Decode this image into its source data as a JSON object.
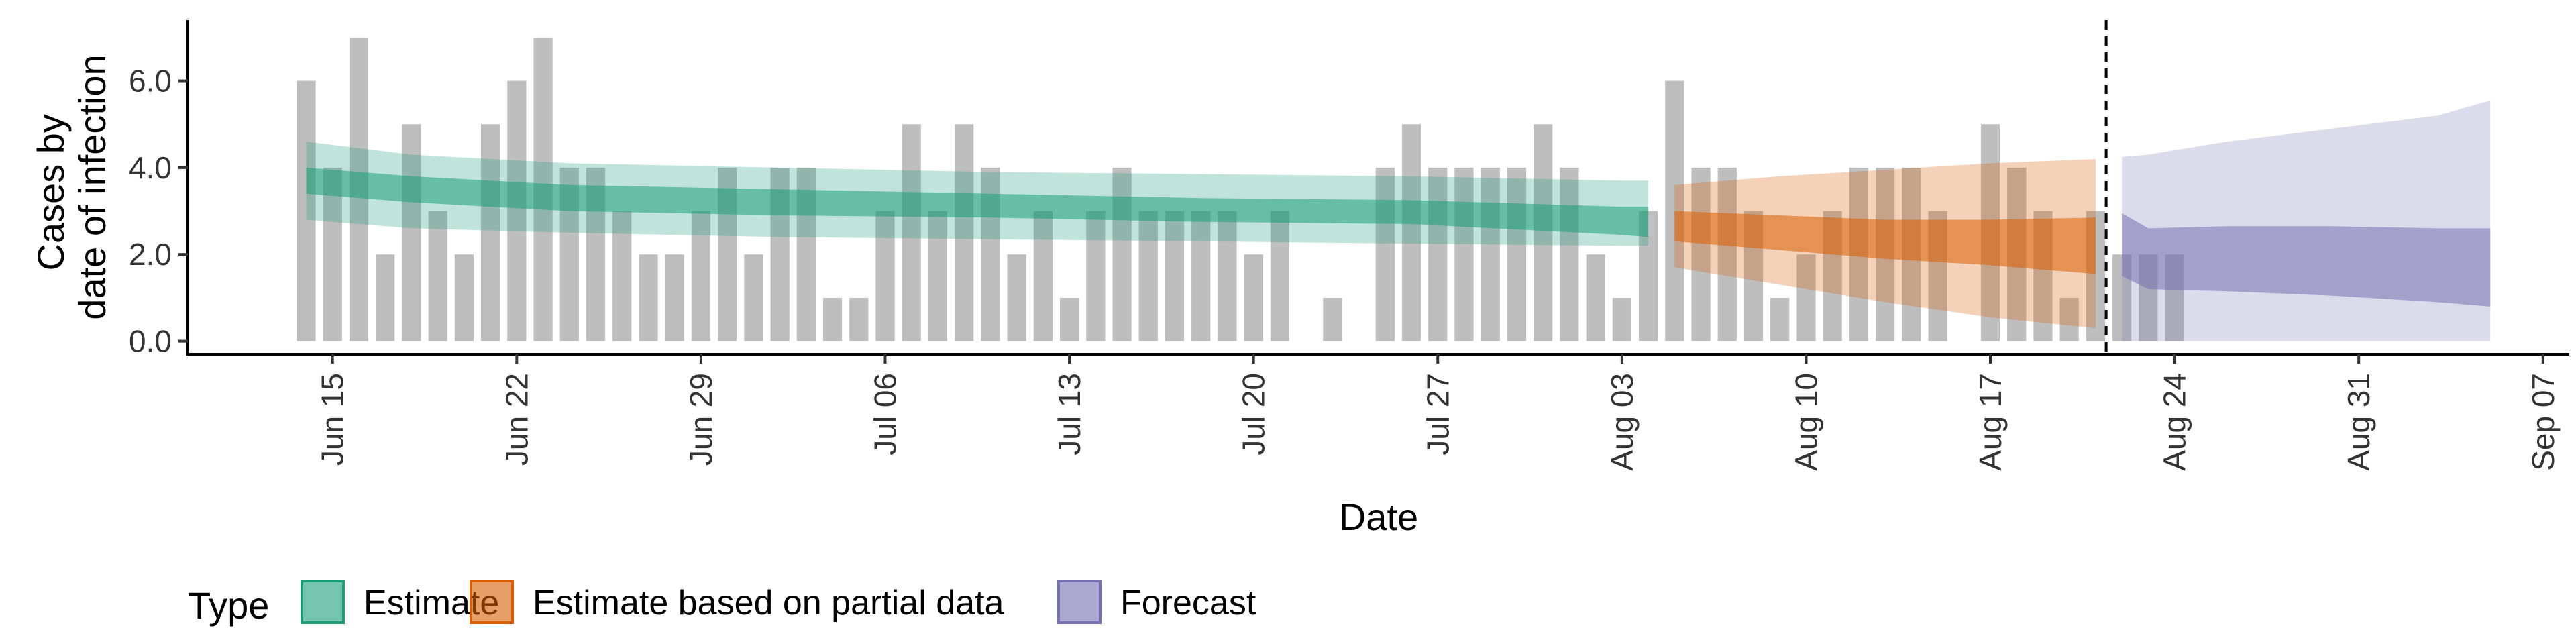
{
  "chart_data": {
    "type": "bar",
    "xlabel": "Date",
    "ylabel_lines": [
      "Cases by",
      "date of infection"
    ],
    "ylim": [
      -0.3,
      7.4
    ],
    "y_ticks": [
      0,
      2,
      4,
      6
    ],
    "y_tick_labels": [
      "0.0",
      "2.0",
      "4.0",
      "6.0"
    ],
    "x_start_date": "2020-06-10",
    "x_range_days": [
      -0.5,
      90.0
    ],
    "x_ticks": [
      {
        "day": 5,
        "label": "Jun 15"
      },
      {
        "day": 12,
        "label": "Jun 22"
      },
      {
        "day": 19,
        "label": "Jun 29"
      },
      {
        "day": 26,
        "label": "Jul 06"
      },
      {
        "day": 33,
        "label": "Jul 13"
      },
      {
        "day": 40,
        "label": "Jul 20"
      },
      {
        "day": 47,
        "label": "Jul 27"
      },
      {
        "day": 54,
        "label": "Aug 03"
      },
      {
        "day": 61,
        "label": "Aug 10"
      },
      {
        "day": 68,
        "label": "Aug 17"
      },
      {
        "day": 75,
        "label": "Aug 24"
      },
      {
        "day": 82,
        "label": "Aug 31"
      },
      {
        "day": 89,
        "label": "Sep 07"
      }
    ],
    "bars": {
      "start_day": 4,
      "values": [
        6,
        4,
        7,
        2,
        5,
        3,
        2,
        5,
        6,
        7,
        4,
        4,
        3,
        2,
        2,
        3,
        4,
        2,
        4,
        4,
        1,
        1,
        3,
        5,
        3,
        5,
        4,
        2,
        3,
        1,
        3,
        4,
        3,
        3,
        3,
        3,
        2,
        3,
        0,
        1,
        0,
        4,
        5,
        4,
        4,
        4,
        4,
        5,
        4,
        2,
        1,
        3,
        6,
        4,
        4,
        3,
        1,
        2,
        3,
        4,
        4,
        4,
        3,
        0,
        5,
        4,
        3,
        1,
        3,
        2,
        2,
        2
      ],
      "color": "#bebebe"
    },
    "cutoff_day": 72.4,
    "series": [
      {
        "name": "Estimate",
        "color": "#1b9e77",
        "points": [
          {
            "day": 4,
            "lo90": 2.8,
            "lo50": 3.4,
            "mid": 3.9,
            "hi50": 4.0,
            "hi90": 4.6
          },
          {
            "day": 8,
            "lo90": 2.6,
            "lo50": 3.2,
            "mid": 3.6,
            "hi50": 3.8,
            "hi90": 4.3
          },
          {
            "day": 14,
            "lo90": 2.5,
            "lo50": 3.0,
            "mid": 3.3,
            "hi50": 3.6,
            "hi90": 4.1
          },
          {
            "day": 22,
            "lo90": 2.4,
            "lo50": 2.9,
            "mid": 3.2,
            "hi50": 3.5,
            "hi90": 4.0
          },
          {
            "day": 30,
            "lo90": 2.35,
            "lo50": 2.85,
            "mid": 3.1,
            "hi50": 3.4,
            "hi90": 3.9
          },
          {
            "day": 38,
            "lo90": 2.3,
            "lo50": 2.75,
            "mid": 3.0,
            "hi50": 3.3,
            "hi90": 3.85
          },
          {
            "day": 46,
            "lo90": 2.25,
            "lo50": 2.7,
            "mid": 3.0,
            "hi50": 3.25,
            "hi90": 3.8
          },
          {
            "day": 54,
            "lo90": 2.2,
            "lo50": 2.45,
            "mid": 2.8,
            "hi50": 3.1,
            "hi90": 3.7
          },
          {
            "day": 55,
            "lo90": 2.2,
            "lo50": 2.4,
            "mid": 2.8,
            "hi50": 3.1,
            "hi90": 3.7
          }
        ]
      },
      {
        "name": "Estimate based on partial data",
        "color": "#d95f02",
        "points": [
          {
            "day": 56,
            "lo90": 1.7,
            "lo50": 2.3,
            "mid": 2.6,
            "hi50": 3.0,
            "hi90": 3.6
          },
          {
            "day": 60,
            "lo90": 1.3,
            "lo50": 2.1,
            "mid": 2.45,
            "hi50": 2.9,
            "hi90": 3.8
          },
          {
            "day": 64,
            "lo90": 0.9,
            "lo50": 1.9,
            "mid": 2.25,
            "hi50": 2.8,
            "hi90": 3.95
          },
          {
            "day": 68,
            "lo90": 0.55,
            "lo50": 1.75,
            "mid": 2.1,
            "hi50": 2.8,
            "hi90": 4.1
          },
          {
            "day": 72,
            "lo90": 0.3,
            "lo50": 1.55,
            "mid": 1.95,
            "hi50": 2.85,
            "hi90": 4.2
          }
        ]
      },
      {
        "name": "Forecast",
        "color": "#7570b3",
        "points": [
          {
            "day": 73,
            "lo90": 0.0,
            "lo50": 1.5,
            "mid": 2.2,
            "hi50": 2.95,
            "hi90": 4.25
          },
          {
            "day": 74,
            "lo90": 0.0,
            "lo50": 1.2,
            "mid": 2.0,
            "hi50": 2.6,
            "hi90": 4.3
          },
          {
            "day": 77,
            "lo90": 0.0,
            "lo50": 1.15,
            "mid": 1.9,
            "hi50": 2.65,
            "hi90": 4.6
          },
          {
            "day": 81,
            "lo90": 0.0,
            "lo50": 1.05,
            "mid": 1.85,
            "hi50": 2.65,
            "hi90": 4.9
          },
          {
            "day": 85,
            "lo90": 0.0,
            "lo50": 0.9,
            "mid": 1.75,
            "hi50": 2.6,
            "hi90": 5.2
          },
          {
            "day": 87,
            "lo90": 0.0,
            "lo50": 0.8,
            "mid": 1.7,
            "hi50": 2.6,
            "hi90": 5.55
          }
        ]
      }
    ],
    "legend": {
      "title": "Type",
      "placement": "bottom-left",
      "entries": [
        "Estimate",
        "Estimate based on partial data",
        "Forecast"
      ]
    },
    "grid": false
  }
}
